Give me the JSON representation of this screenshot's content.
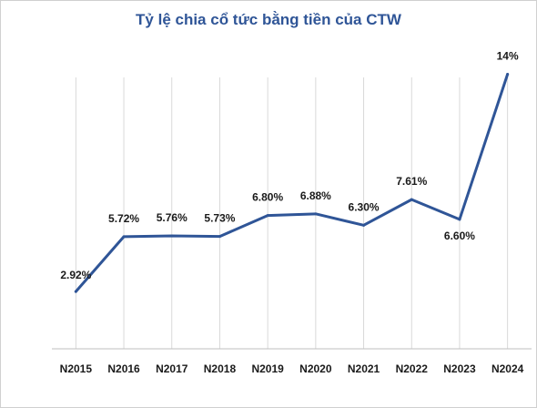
{
  "chart_data": {
    "type": "line",
    "title": "Tỷ lệ chia cổ tức bằng tiền của CTW",
    "categories": [
      "N2015",
      "N2016",
      "N2017",
      "N2018",
      "N2019",
      "N2020",
      "N2021",
      "N2022",
      "N2023",
      "N2024"
    ],
    "series": [
      {
        "values": [
          2.92,
          5.72,
          5.76,
          5.73,
          6.8,
          6.88,
          6.3,
          7.61,
          6.6,
          14
        ],
        "labels": [
          "2.92%",
          "5.72%",
          "5.76%",
          "5.73%",
          "6.80%",
          "6.88%",
          "6.30%",
          "7.61%",
          "6.60%",
          "14%"
        ]
      }
    ],
    "xlabel": "",
    "ylabel": "",
    "ylim": [
      0,
      15
    ],
    "grid": "vertical",
    "legend": "none",
    "line_color": "#2f5597",
    "grid_color": "#d9d9d9"
  }
}
